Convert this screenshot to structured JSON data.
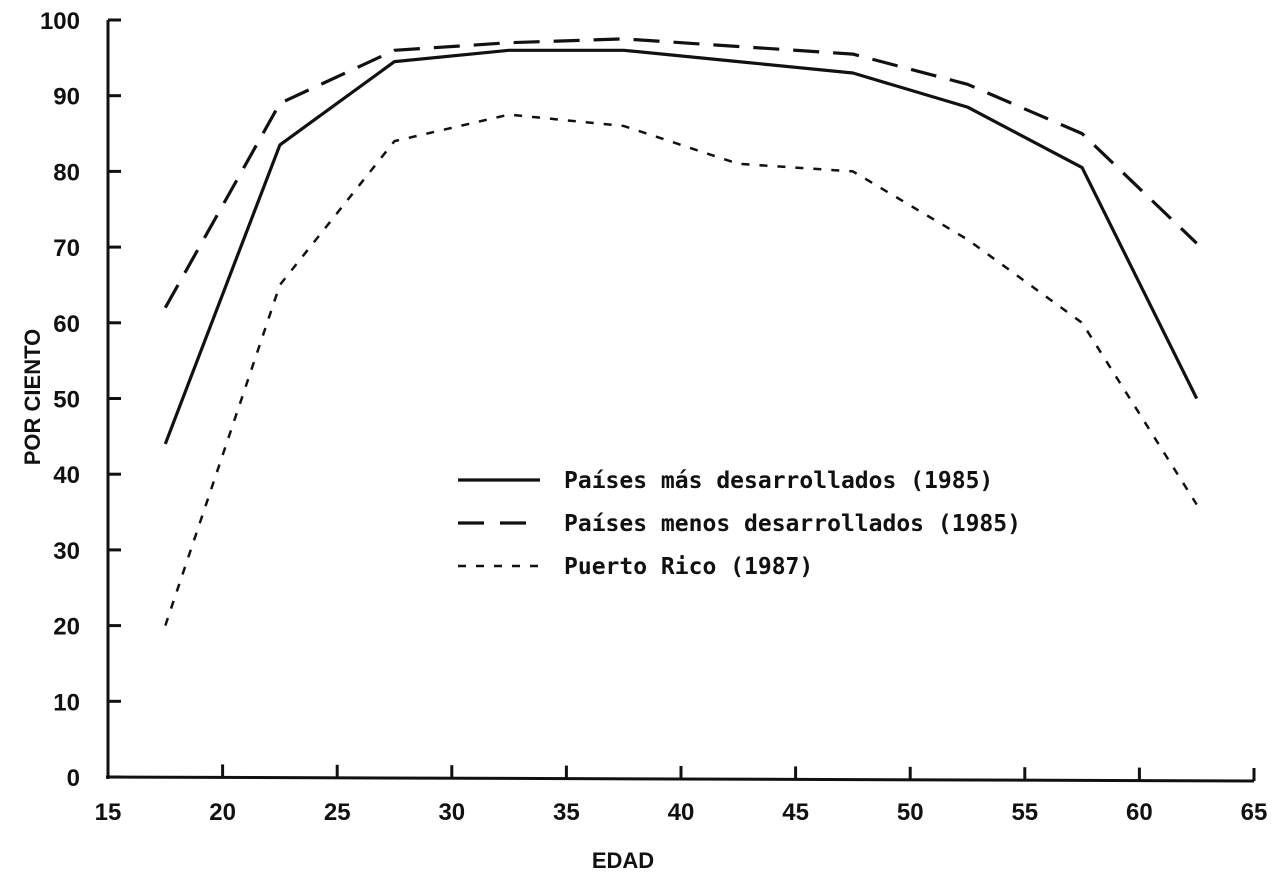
{
  "chart_data": {
    "type": "line",
    "xlabel": "EDAD",
    "ylabel": "POR CIENTO",
    "xlim": [
      15,
      65
    ],
    "ylim": [
      0,
      100
    ],
    "x_ticks": [
      "15",
      "20",
      "25",
      "30",
      "35",
      "40",
      "45",
      "50",
      "55",
      "60",
      "65"
    ],
    "y_ticks": [
      "0",
      "10",
      "20",
      "30",
      "40",
      "50",
      "60",
      "70",
      "80",
      "90",
      "100"
    ],
    "grid": false,
    "legend_position": "center-right",
    "series": [
      {
        "name": "Países más desarrollados (1985)",
        "style": "solid",
        "x": [
          17.5,
          22.5,
          27.5,
          32.5,
          37.5,
          42.5,
          47.5,
          52.5,
          57.5,
          62.5
        ],
        "y": [
          44,
          83.5,
          94.5,
          96,
          96,
          94.5,
          93,
          88.5,
          80.5,
          50
        ]
      },
      {
        "name": "Países menos desarrollados (1985)",
        "style": "long-dash",
        "x": [
          17.5,
          22.5,
          27.5,
          32.5,
          37.5,
          42.5,
          47.5,
          52.5,
          57.5,
          62.5
        ],
        "y": [
          62,
          89,
          96,
          97,
          97.5,
          96.5,
          95.5,
          91.5,
          85,
          70.5
        ]
      },
      {
        "name": "Puerto Rico (1987)",
        "style": "short-dash",
        "x": [
          17.5,
          22.5,
          27.5,
          32.5,
          37.5,
          42.5,
          47.5,
          52.5,
          57.5,
          62.5
        ],
        "y": [
          20,
          65,
          84,
          87.5,
          86,
          81,
          80,
          71,
          60,
          36
        ]
      }
    ]
  }
}
